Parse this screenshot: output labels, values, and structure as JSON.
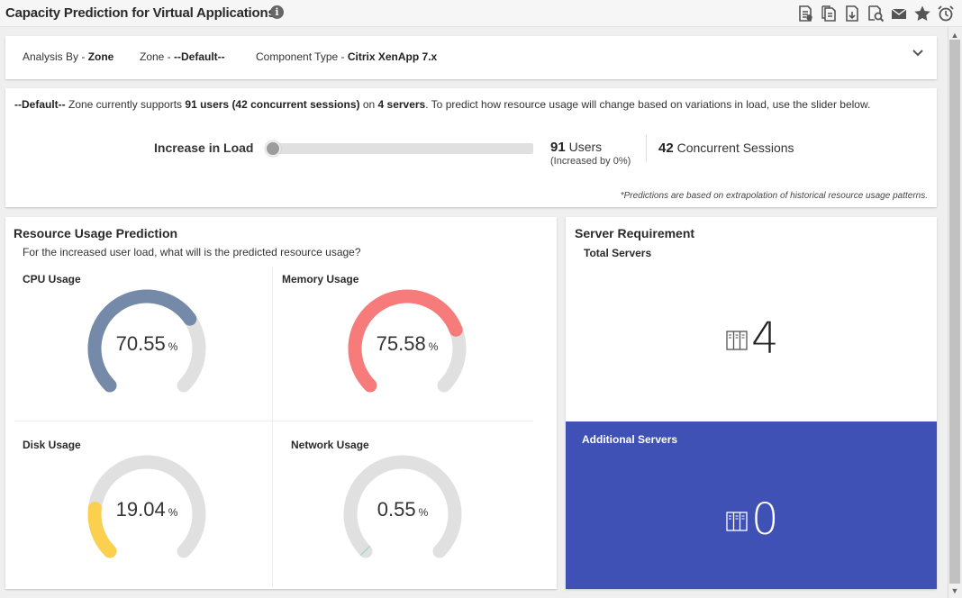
{
  "header": {
    "title": "Capacity Prediction for Virtual Applications",
    "info_glyph": "i",
    "icons": [
      "report-icon",
      "copy-report-icon",
      "export-icon",
      "search-report-icon",
      "mail-icon",
      "star-icon",
      "alarm-icon"
    ]
  },
  "filters": {
    "analysis": {
      "label": "Analysis By - ",
      "value": "Zone"
    },
    "zone": {
      "label": "Zone - ",
      "value": "--Default--"
    },
    "component": {
      "label": "Component Type - ",
      "value": "Citrix XenApp 7.x"
    }
  },
  "summary": {
    "zone": "--Default--",
    "text1": " Zone currently supports ",
    "users_bold": "91 users",
    "text2": " ",
    "sessions_bold": "(42 concurrent sessions)",
    "text3": " on ",
    "servers_bold": "4 servers",
    "text4": ". To predict how resource usage will change based on variations in load, use the slider below.",
    "slider_label": "Increase in Load",
    "slider_value_fraction": 0,
    "users_count": "91",
    "users_label": " Users",
    "increase_note": "(Increased by 0%)",
    "sessions_count": "42",
    "sessions_label": " Concurrent Sessions",
    "footnote": "*Predictions are based on extrapolation of historical resource usage patterns."
  },
  "resource": {
    "title": "Resource Usage Prediction",
    "subtitle": "For the increased user load, what will is the predicted resource usage?",
    "unit": "%",
    "gauges": [
      {
        "key": "cpu",
        "label": "CPU Usage",
        "value": "70.55",
        "color": "#7589a8"
      },
      {
        "key": "memory",
        "label": "Memory Usage",
        "value": "75.58",
        "color": "#f77b7b"
      },
      {
        "key": "disk",
        "label": "Disk Usage",
        "value": "19.04",
        "color": "#fcd04f"
      },
      {
        "key": "network",
        "label": "Network Usage",
        "value": "0.55",
        "color": "#9fdcc8"
      }
    ]
  },
  "server": {
    "title": "Server Requirement",
    "total_label": "Total Servers",
    "total_value": "4",
    "additional_label": "Additional Servers",
    "additional_value": "0",
    "additional_bg": "#3f51b5"
  }
}
